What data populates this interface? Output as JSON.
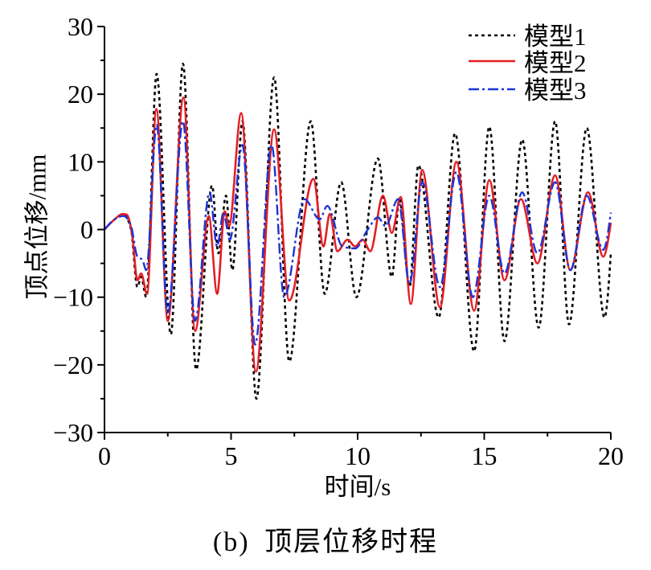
{
  "chart_data": {
    "type": "line",
    "caption": "(b) 顶层位移时程",
    "xlabel": "时间/s",
    "ylabel": "顶点位移/mm",
    "xlim": [
      0,
      20
    ],
    "ylim": [
      -30,
      30
    ],
    "xticks": [
      0,
      5,
      10,
      15,
      20
    ],
    "xtick_labels": [
      "0",
      "5",
      "10",
      "15",
      "20"
    ],
    "yticks": [
      -30,
      -20,
      -10,
      0,
      10,
      20,
      30
    ],
    "ytick_labels": [
      "−30",
      "−20",
      "−10",
      "0",
      "10",
      "20",
      "30"
    ],
    "grid": false,
    "legend_position": "top-right",
    "series": [
      {
        "name": "模型1",
        "color": "#000000",
        "line_style": "dotted",
        "x": [
          0,
          0.4,
          0.75,
          1.05,
          1.3,
          1.45,
          1.65,
          2.06,
          2.62,
          3.1,
          3.62,
          4.25,
          4.5,
          4.8,
          5.05,
          5.45,
          6.0,
          6.7,
          7.3,
          8.15,
          8.7,
          9.35,
          9.95,
          10.8,
          11.35,
          11.65,
          12.05,
          12.4,
          13.2,
          13.85,
          14.6,
          15.2,
          15.8,
          16.5,
          17.15,
          17.8,
          18.35,
          19.05,
          19.75,
          20
        ],
        "y": [
          0,
          1.5,
          2.2,
          0,
          -8.5,
          -7,
          -10,
          23,
          -15.5,
          24.5,
          -20.7,
          6.5,
          -3.5,
          5,
          -6,
          16,
          -25,
          22.5,
          -19.5,
          16,
          -9.5,
          7,
          -10,
          10.5,
          -7,
          4.5,
          -8.5,
          9.5,
          -13,
          14.2,
          -18,
          15.2,
          -16.5,
          13.3,
          -14.5,
          16,
          -14,
          15,
          -13,
          -3.5
        ]
      },
      {
        "name": "模型2",
        "color": "#e41e24",
        "line_style": "solid",
        "x": [
          0,
          0.4,
          0.72,
          0.88,
          1.1,
          1.3,
          1.45,
          1.68,
          2.05,
          2.5,
          3.12,
          3.58,
          4.12,
          4.45,
          4.75,
          4.92,
          5.4,
          5.98,
          6.7,
          7.3,
          8.25,
          8.65,
          8.9,
          9.2,
          9.6,
          9.9,
          10.2,
          10.5,
          11.0,
          11.35,
          11.7,
          12.1,
          12.55,
          13.25,
          13.9,
          14.6,
          15.2,
          15.8,
          16.45,
          17.1,
          17.8,
          18.4,
          19.1,
          19.7,
          20
        ],
        "y": [
          0,
          1.5,
          2.3,
          2.2,
          -1,
          -7.5,
          -6.5,
          -9.5,
          17.8,
          -13.5,
          19.5,
          -15,
          2,
          -9.5,
          2.7,
          0.5,
          17.2,
          -21,
          14.8,
          -10.5,
          7.5,
          -2.5,
          2.3,
          -3.2,
          -1.5,
          -2.5,
          -1.5,
          -3.2,
          5,
          -0.5,
          4.8,
          -11,
          8.8,
          -11.5,
          10,
          -12,
          7.3,
          -7.5,
          4.5,
          -5,
          8,
          -6,
          5.5,
          -4,
          1
        ]
      },
      {
        "name": "模型3",
        "color": "#1c34d6",
        "line_style": "dash-dot",
        "x": [
          0,
          0.4,
          0.75,
          1.05,
          1.3,
          1.5,
          1.65,
          2.06,
          2.5,
          3.1,
          3.58,
          4.15,
          4.45,
          4.7,
          4.95,
          5.45,
          5.95,
          6.6,
          7.1,
          7.9,
          8.5,
          8.8,
          9.4,
          9.9,
          10.4,
          10.8,
          11.1,
          11.6,
          12.05,
          12.55,
          13.25,
          13.9,
          14.55,
          15.2,
          15.8,
          16.5,
          17.1,
          17.8,
          18.4,
          19.05,
          19.7,
          20
        ],
        "y": [
          0,
          1.5,
          2,
          0.5,
          -4,
          -4.5,
          -6,
          15.5,
          -12.5,
          16,
          -13.5,
          5.5,
          -2.5,
          2.5,
          -1.5,
          12.5,
          -17,
          12.5,
          -10,
          4.5,
          1.5,
          3.5,
          -2.5,
          -2.8,
          0,
          1.8,
          0.5,
          4.5,
          -8,
          7,
          -8.5,
          8.5,
          -10,
          5,
          -6.5,
          5.5,
          -3.5,
          7,
          -6,
          5,
          -3,
          2.5
        ]
      }
    ]
  }
}
